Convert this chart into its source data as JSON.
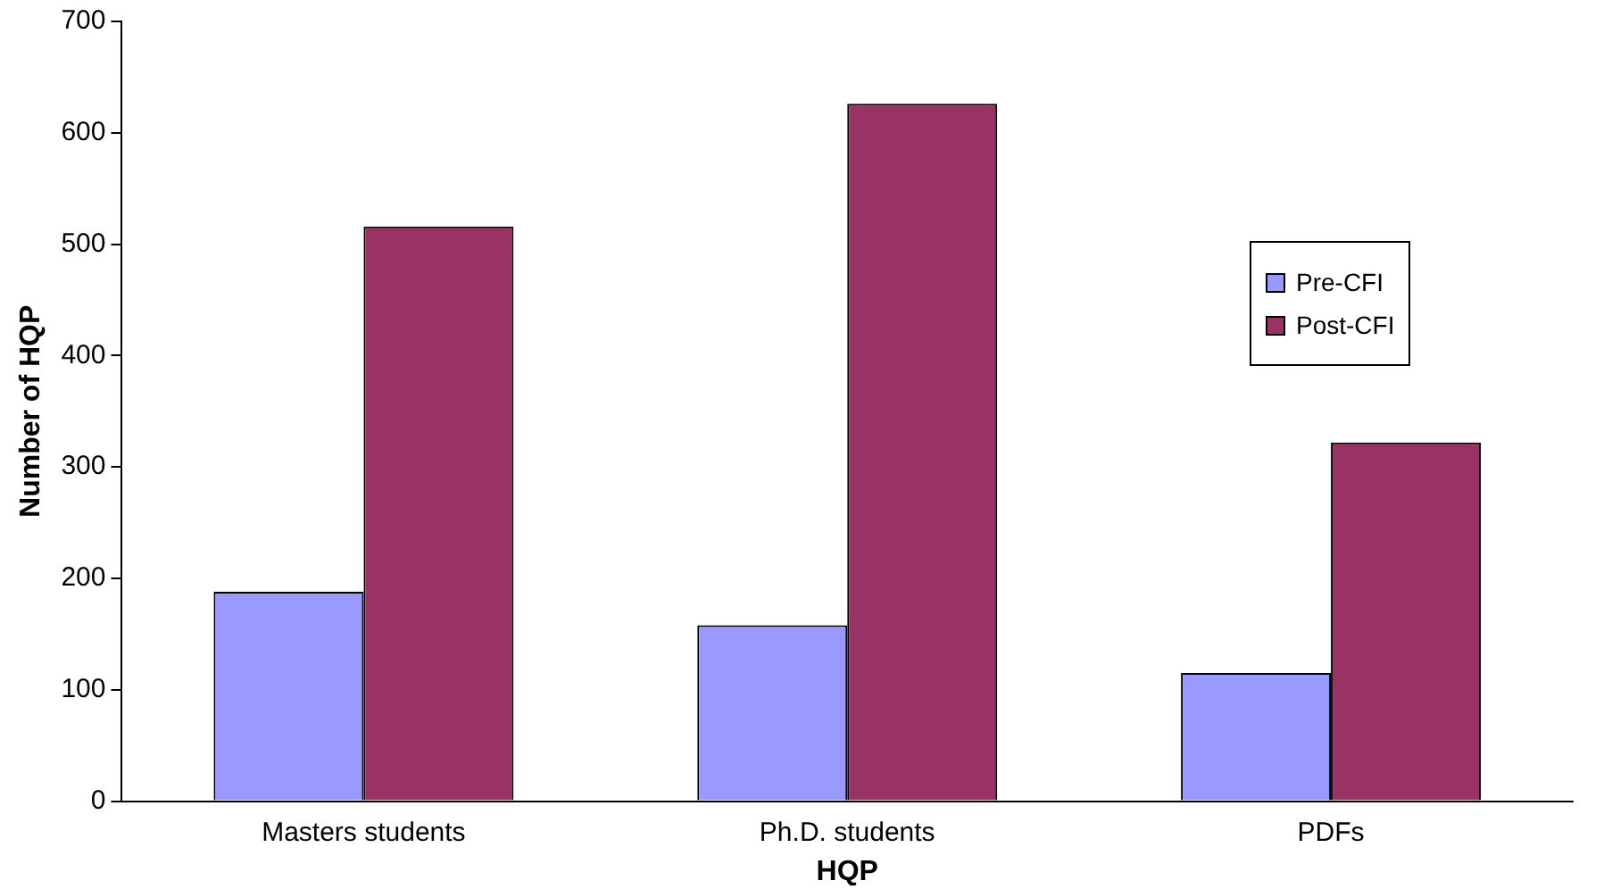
{
  "chart_data": {
    "type": "bar",
    "xlabel": "HQP",
    "ylabel": "Number of HQP",
    "categories": [
      "Masters students",
      "Ph.D. students",
      "PDFs"
    ],
    "series": [
      {
        "name": "Pre-CFI",
        "color": "#9999ff",
        "values": [
          188,
          158,
          115
        ]
      },
      {
        "name": "Post-CFI",
        "color": "#993366",
        "values": [
          516,
          626,
          322
        ]
      }
    ],
    "ylim": [
      0,
      700
    ],
    "yticks": [
      0,
      100,
      200,
      300,
      400,
      500,
      600,
      700
    ],
    "grid": false,
    "legend": "right"
  }
}
